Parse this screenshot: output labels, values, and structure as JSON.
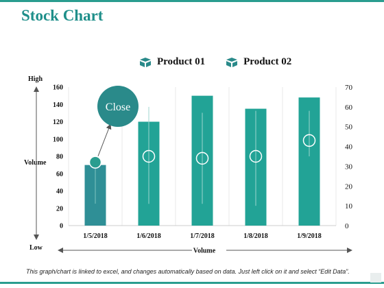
{
  "title": "Stock Chart",
  "legend": [
    {
      "label": "Product 01",
      "color": "#2a8a8a"
    },
    {
      "label": "Product 02",
      "color": "#2a8a8a"
    }
  ],
  "side_labels": {
    "high": "High",
    "volume": "Volume",
    "low": "Low"
  },
  "bottom_axis_label": "Volume",
  "footer_note": "This graph/chart is linked to excel, and changes automatically based on data. Just left click on it and select “Edit Data”.",
  "chart_data": {
    "type": "bar",
    "categories": [
      "1/5/2018",
      "1/6/2018",
      "1/7/2018",
      "1/8/2018",
      "1/9/2018"
    ],
    "left_axis": {
      "ylim": [
        0,
        160
      ],
      "ticks": [
        0,
        20,
        40,
        60,
        80,
        100,
        120,
        140,
        160
      ]
    },
    "right_axis": {
      "ylim": [
        0,
        70
      ],
      "ticks": [
        0,
        10,
        20,
        30,
        40,
        50,
        60,
        70
      ]
    },
    "volume": [
      70,
      120,
      150,
      135,
      148
    ],
    "close": [
      32,
      35,
      34,
      35,
      43
    ],
    "high": [
      null,
      60,
      57,
      58,
      58
    ],
    "low": [
      null,
      11,
      11,
      10,
      35
    ],
    "bar_colors": [
      "#2f8f96",
      "#22a396",
      "#22a396",
      "#22a396",
      "#22a396"
    ],
    "callout": "Close",
    "grid": true
  },
  "colors": {
    "accent": "#2a9d8f",
    "callout": "#2a8a8a",
    "marker_fill": "#2a9d8f"
  }
}
